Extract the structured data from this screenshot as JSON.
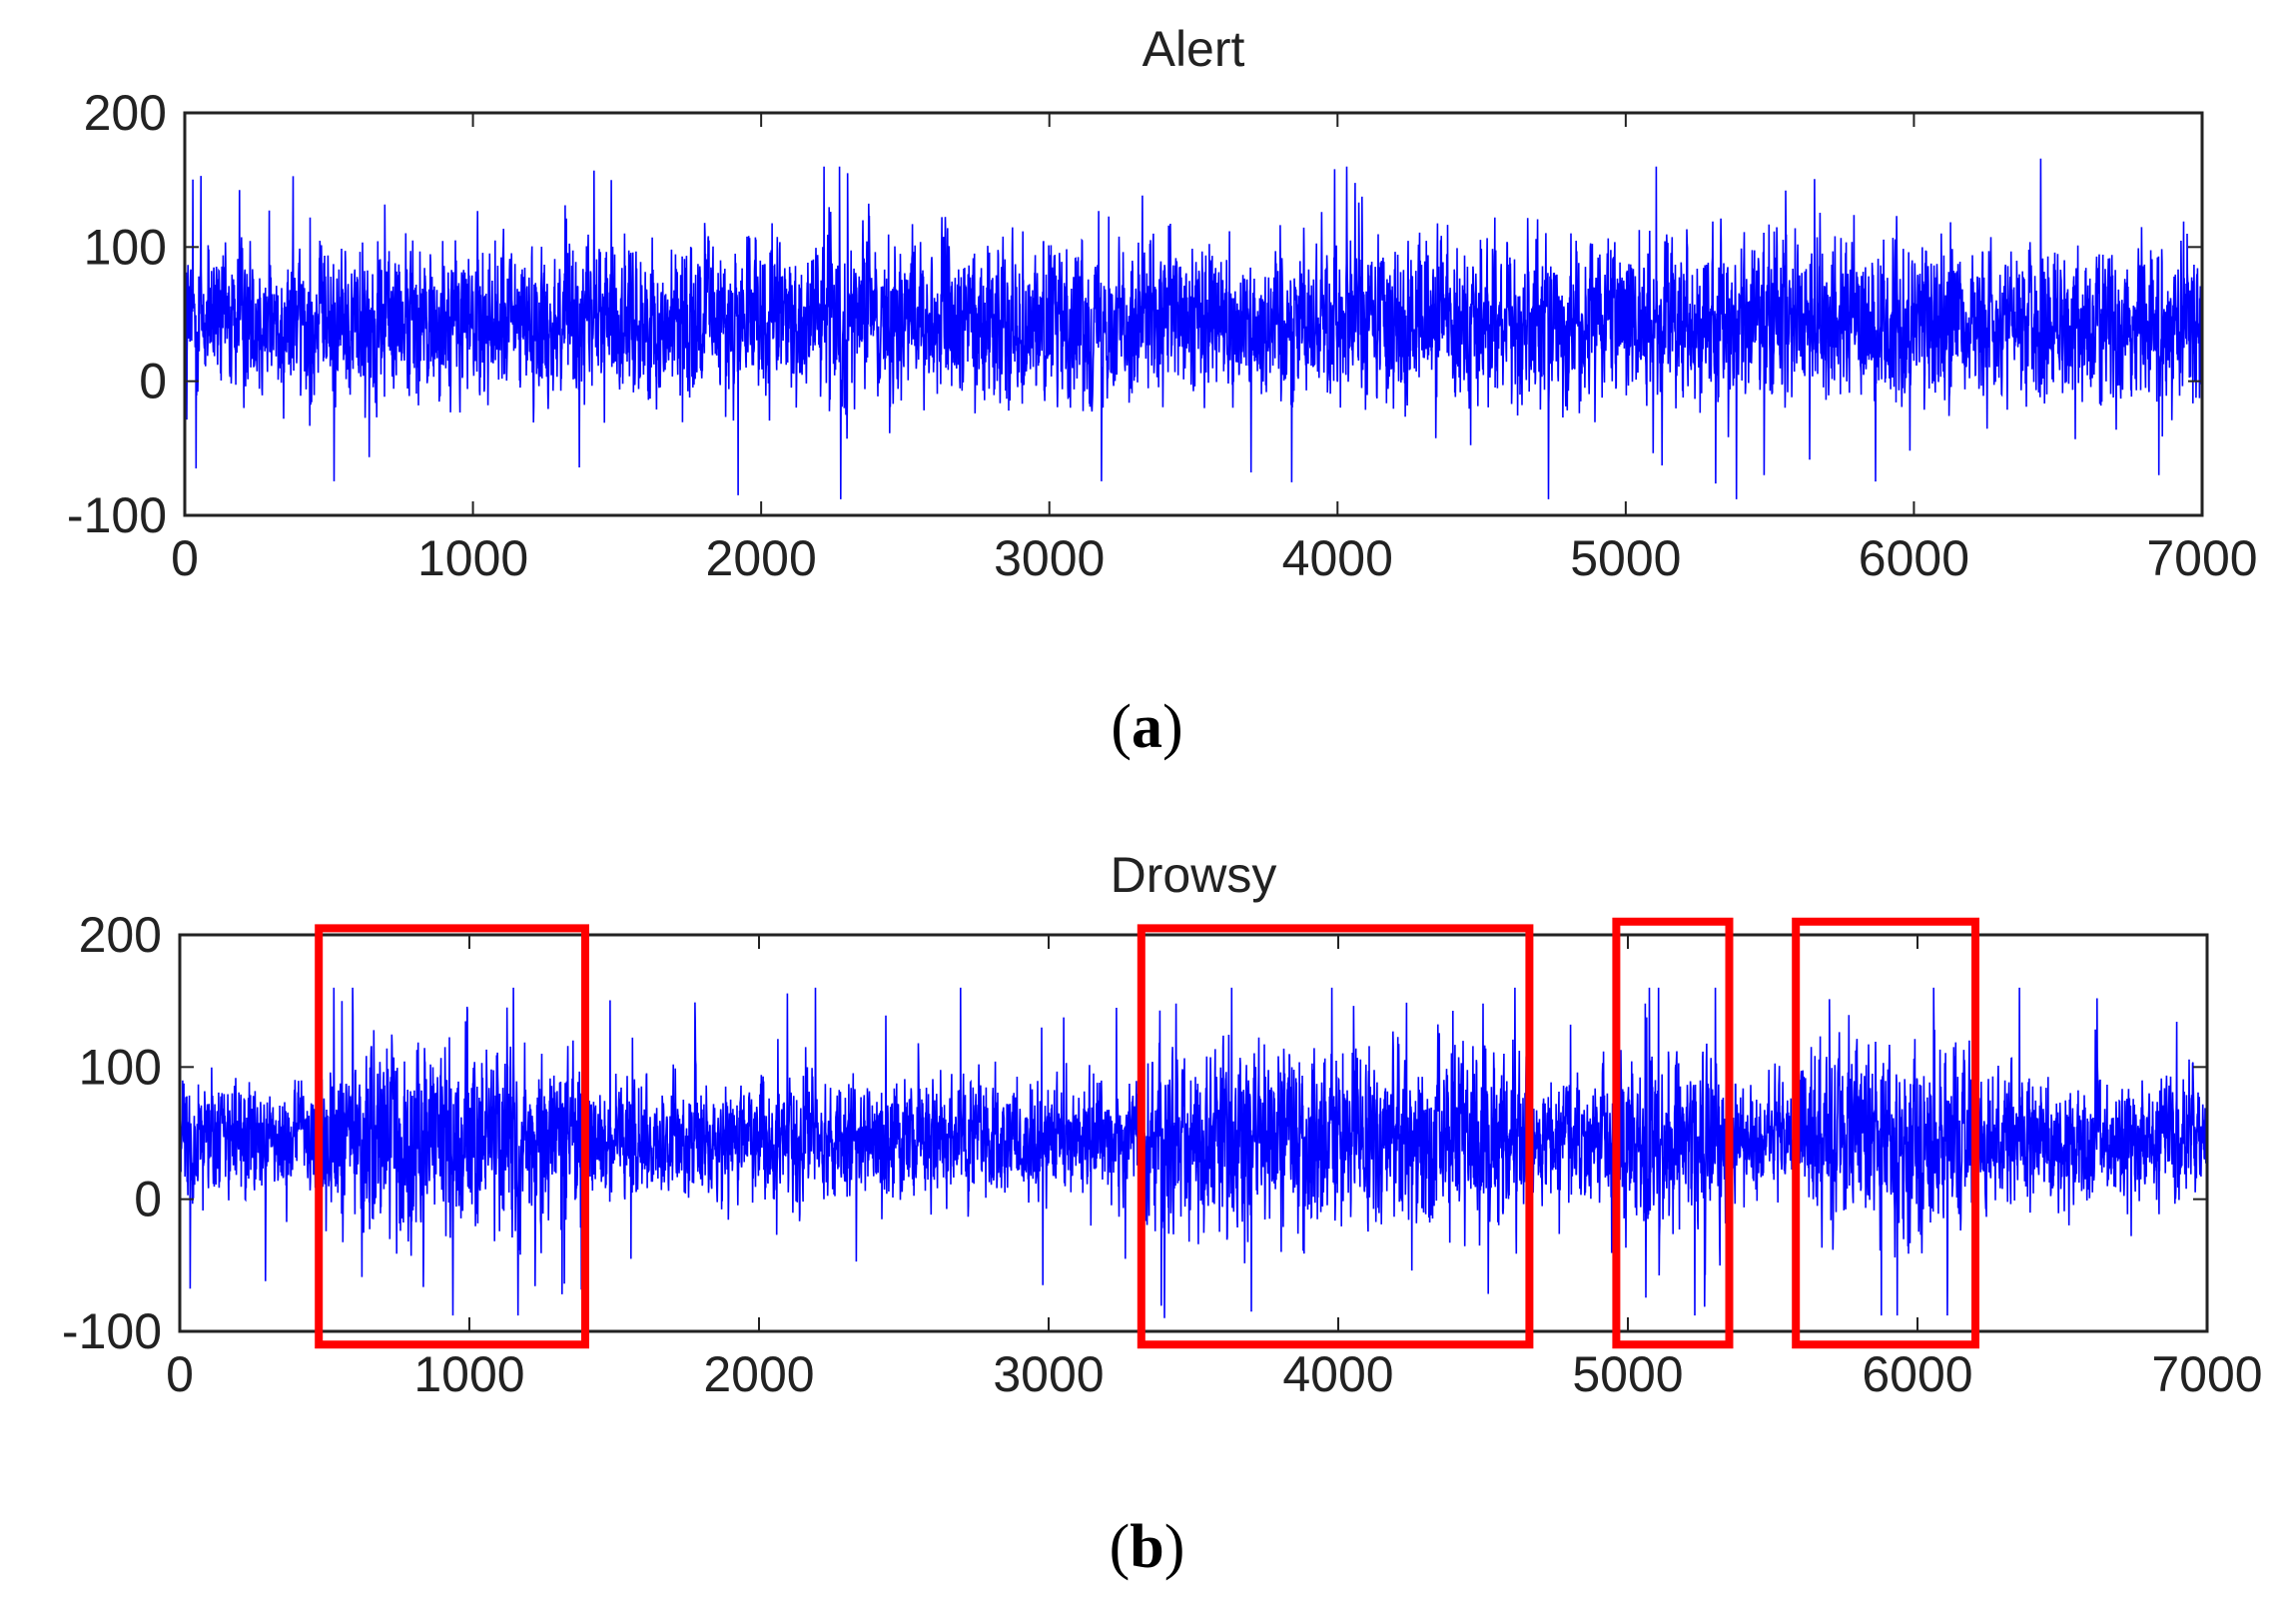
{
  "chart_data": [
    {
      "type": "line",
      "panel": "a",
      "title": "Alert",
      "xlim": [
        0,
        7000
      ],
      "ylim": [
        -100,
        200
      ],
      "xticks": [
        "0",
        "1000",
        "2000",
        "3000",
        "4000",
        "5000",
        "6000",
        "7000"
      ],
      "yticks": [
        "200",
        "100",
        "0",
        "-100"
      ],
      "color": "#0000ff",
      "n_points": 7000,
      "baseline": 45,
      "spread": 26,
      "peaks": [
        {
          "x": 1480,
          "y": 150
        },
        {
          "x": 2300,
          "y": 155
        },
        {
          "x": 3990,
          "y": 158
        },
        {
          "x": 6440,
          "y": 166
        },
        {
          "x": 1920,
          "y": -85
        },
        {
          "x": 3700,
          "y": -68
        },
        {
          "x": 5480,
          "y": -70
        },
        {
          "x": 6850,
          "y": -70
        }
      ],
      "highlights": []
    },
    {
      "type": "line",
      "panel": "b",
      "title": "Drowsy",
      "xlim": [
        0,
        7000
      ],
      "ylim": [
        -100,
        200
      ],
      "xticks": [
        "0",
        "1000",
        "2000",
        "3000",
        "4000",
        "5000",
        "6000",
        "7000"
      ],
      "yticks": [
        "200",
        "100",
        "0",
        "-100"
      ],
      "color": "#0000ff",
      "n_points": 7000,
      "baseline": 45,
      "spread": 20,
      "peaks": [
        {
          "x": 560,
          "y": 150
        },
        {
          "x": 1130,
          "y": 145
        },
        {
          "x": 3440,
          "y": 148
        },
        {
          "x": 4500,
          "y": 148
        },
        {
          "x": 5060,
          "y": 148
        },
        {
          "x": 6620,
          "y": 152
        },
        {
          "x": 2980,
          "y": -65
        },
        {
          "x": 3400,
          "y": -90
        },
        {
          "x": 3700,
          "y": -85
        },
        {
          "x": 1320,
          "y": -72
        }
      ],
      "highlights": [
        {
          "x0": 480,
          "x1": 1400,
          "y0": -110,
          "y1": 205
        },
        {
          "x0": 3320,
          "x1": 4660,
          "y0": -110,
          "y1": 205
        },
        {
          "x0": 4960,
          "x1": 5350,
          "y0": -110,
          "y1": 210
        },
        {
          "x0": 5580,
          "x1": 6200,
          "y0": -110,
          "y1": 210
        }
      ],
      "highlight_color": "#ff0000"
    }
  ],
  "captions": [
    {
      "label": "a"
    },
    {
      "label": "b"
    }
  ]
}
